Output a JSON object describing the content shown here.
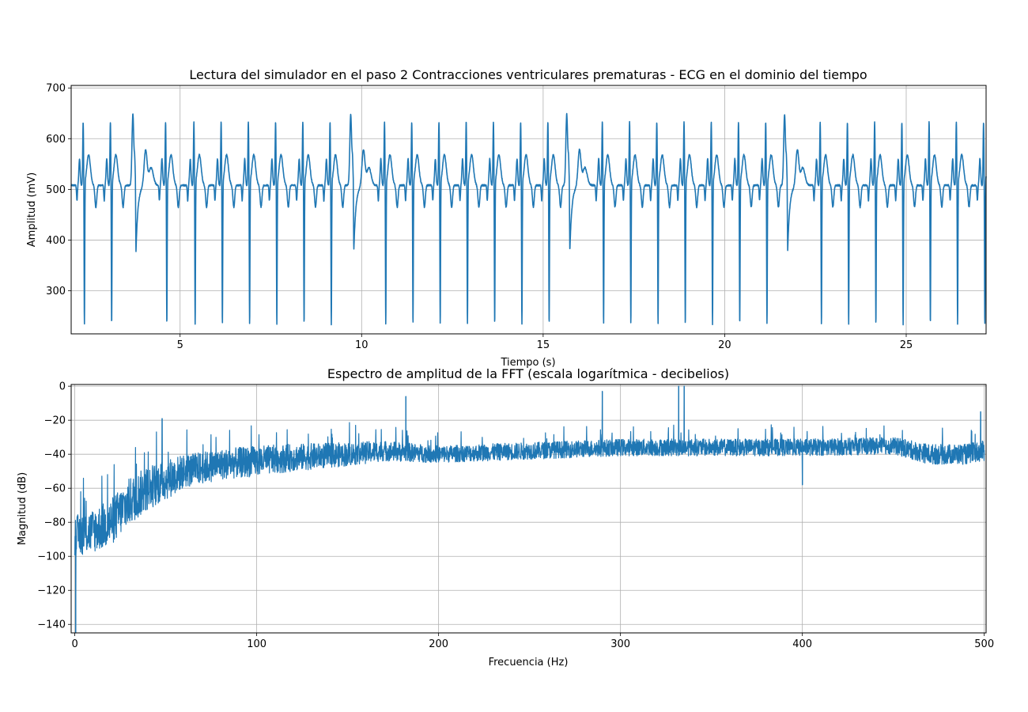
{
  "chart_data": [
    {
      "type": "line",
      "title": "Lectura del simulador en el paso 2 Contracciones ventriculares prematuras - ECG en el dominio del tiempo",
      "xlabel": "Tiempo (s)",
      "ylabel": "Amplitud (mV)",
      "xlim": [
        2.0,
        27.2
      ],
      "ylim": [
        215,
        705
      ],
      "xticks": [
        5,
        10,
        15,
        20,
        25
      ],
      "yticks": [
        300,
        400,
        500,
        600,
        700
      ],
      "grid": true,
      "series_color": "#1f77b4",
      "signal": {
        "kind": "ecg",
        "start_time_s": 2.0,
        "end_time_s": 27.2,
        "baseline_mv": 508,
        "normal_beat": {
          "r_peak_mv": 672,
          "s_trough_mv": 228,
          "t_peak_mv": 568,
          "pre_dip_mv": 478,
          "post_dip_mv": 465
        },
        "pvc_beat": {
          "peak_mv": 678,
          "trough_mv": 335,
          "recovery_peak_mv": 578
        },
        "normal_beat_times_s": [
          2.35,
          3.1,
          4.62,
          5.4,
          6.15,
          6.9,
          7.65,
          8.4,
          9.15,
          10.65,
          11.4,
          12.15,
          12.9,
          13.65,
          14.4,
          15.15,
          16.65,
          17.4,
          18.15,
          18.9,
          19.65,
          20.4,
          21.15,
          22.65,
          23.4,
          24.15,
          24.9,
          25.65,
          26.4,
          27.15
        ],
        "pvc_beat_times_s": [
          3.75,
          9.75,
          15.7,
          21.7
        ]
      }
    },
    {
      "type": "line",
      "title": "Espectro de amplitud de la FFT (escala logarítmica - decibelios)",
      "xlabel": "Frecuencia (Hz)",
      "ylabel": "Magnitud (dB)",
      "xlim": [
        -2,
        501
      ],
      "ylim": [
        -145,
        1
      ],
      "xticks": [
        0,
        100,
        200,
        300,
        400,
        500
      ],
      "yticks": [
        -140,
        -120,
        -100,
        -80,
        -60,
        -40,
        -20,
        0
      ],
      "grid": true,
      "series_color": "#1f77b4",
      "envelope": {
        "freq_hz": [
          0,
          10,
          20,
          30,
          40,
          50,
          60,
          80,
          100,
          120,
          150,
          170,
          200,
          250,
          300,
          350,
          400,
          450,
          470,
          490,
          500
        ],
        "mean_db": [
          -88,
          -85,
          -80,
          -68,
          -60,
          -55,
          -50,
          -46,
          -44,
          -42,
          -40,
          -38,
          -40,
          -38,
          -36,
          -36,
          -36,
          -35,
          -40,
          -40,
          -38
        ],
        "spread_db": [
          12,
          13,
          14,
          14,
          13,
          12,
          10,
          9,
          9,
          8,
          7,
          6,
          5,
          5,
          5,
          5,
          5,
          5,
          6,
          6,
          6
        ]
      },
      "notable_points": [
        {
          "freq_hz": 0.5,
          "db": -145
        },
        {
          "freq_hz": 48,
          "db": -19
        },
        {
          "freq_hz": 182,
          "db": -6
        },
        {
          "freq_hz": 290,
          "db": -3
        },
        {
          "freq_hz": 332,
          "db": 0
        },
        {
          "freq_hz": 335,
          "db": 0
        },
        {
          "freq_hz": 400,
          "db": -58
        },
        {
          "freq_hz": 498,
          "db": -15
        }
      ]
    }
  ]
}
